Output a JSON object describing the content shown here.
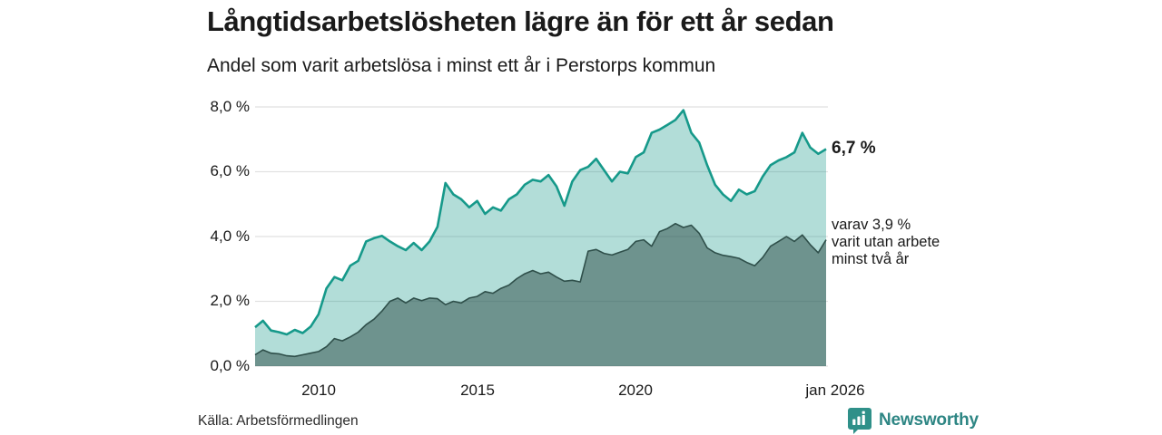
{
  "header": {
    "title": "Långtidsarbetslösheten lägre än för ett år sedan",
    "subtitle": "Andel som varit arbetslösa i minst ett år i Perstorps kommun"
  },
  "annotations": {
    "latest_total": "6,7 %",
    "subset_line1": "varav 3,9 %",
    "subset_line2": "varit utan arbete",
    "subset_line3": "minst två år"
  },
  "footer": {
    "source": "Källa: Arbetsförmedlingen",
    "brand": "Newsworthy"
  },
  "colors": {
    "accent_teal": "#16998a",
    "dark_slate": "#2f4f4a",
    "gridline": "#e1e1e1",
    "brand_teal": "#2f9089",
    "text": "#1a1a1a"
  },
  "chart_data": {
    "type": "area",
    "title": "Långtidsarbetslösheten lägre än för ett år sedan",
    "subtitle": "Andel som varit arbetslösa i minst ett år i Perstorps kommun",
    "xlabel": "",
    "ylabel": "",
    "xlim": [
      2008.0,
      2026.0
    ],
    "ylim": [
      0,
      8
    ],
    "x_start": 2008.0,
    "x_step": 0.25,
    "grid": "horizontal",
    "legend_position": "none",
    "y_ticks": [
      {
        "label": "8,0 %",
        "value": 8
      },
      {
        "label": "6,0 %",
        "value": 6
      },
      {
        "label": "4,0 %",
        "value": 4
      },
      {
        "label": "2,0 %",
        "value": 2
      },
      {
        "label": "0,0 %",
        "value": 0
      }
    ],
    "x_ticks": [
      {
        "label": "2010",
        "value": 2010
      },
      {
        "label": "2015",
        "value": 2015
      },
      {
        "label": "2020",
        "value": 2020
      },
      {
        "label": "jan 2026",
        "value": 2026
      }
    ],
    "series": [
      {
        "name": "Andel som varit arbetslösa i minst ett år",
        "latest_value": 6.7,
        "line_color": "#16998a",
        "line_width": 2.6,
        "fill_color": "#16998a",
        "fill_opacity": 0.33,
        "values": [
          1.2,
          1.4,
          1.1,
          1.05,
          0.98,
          1.12,
          1.02,
          1.22,
          1.6,
          2.4,
          2.75,
          2.65,
          3.1,
          3.25,
          3.85,
          3.95,
          4.02,
          3.85,
          3.7,
          3.58,
          3.8,
          3.58,
          3.85,
          4.3,
          5.65,
          5.3,
          5.15,
          4.9,
          5.1,
          4.7,
          4.9,
          4.8,
          5.15,
          5.3,
          5.6,
          5.75,
          5.7,
          5.9,
          5.55,
          4.95,
          5.7,
          6.05,
          6.15,
          6.4,
          6.05,
          5.7,
          6.0,
          5.95,
          6.45,
          6.6,
          7.2,
          7.3,
          7.45,
          7.6,
          7.9,
          7.2,
          6.9,
          6.2,
          5.6,
          5.3,
          5.1,
          5.45,
          5.3,
          5.4,
          5.85,
          6.2,
          6.35,
          6.45,
          6.6,
          7.2,
          6.75,
          6.55,
          6.7
        ]
      },
      {
        "name": "varav varit utan arbete minst två år",
        "latest_value": 3.9,
        "line_color": "#2f4f4a",
        "line_width": 1.6,
        "fill_color": "#2f4f4a",
        "fill_opacity": 0.52,
        "values": [
          0.35,
          0.5,
          0.4,
          0.38,
          0.32,
          0.3,
          0.35,
          0.4,
          0.45,
          0.6,
          0.85,
          0.78,
          0.9,
          1.05,
          1.28,
          1.45,
          1.7,
          2.0,
          2.1,
          1.95,
          2.1,
          2.02,
          2.1,
          2.08,
          1.9,
          2.0,
          1.95,
          2.1,
          2.15,
          2.3,
          2.25,
          2.4,
          2.5,
          2.7,
          2.85,
          2.95,
          2.85,
          2.9,
          2.75,
          2.62,
          2.65,
          2.6,
          3.55,
          3.6,
          3.48,
          3.43,
          3.52,
          3.6,
          3.85,
          3.9,
          3.7,
          4.15,
          4.25,
          4.4,
          4.28,
          4.35,
          4.1,
          3.65,
          3.5,
          3.42,
          3.38,
          3.33,
          3.2,
          3.1,
          3.35,
          3.7,
          3.85,
          4.0,
          3.85,
          4.05,
          3.75,
          3.5,
          3.9
        ]
      }
    ]
  }
}
